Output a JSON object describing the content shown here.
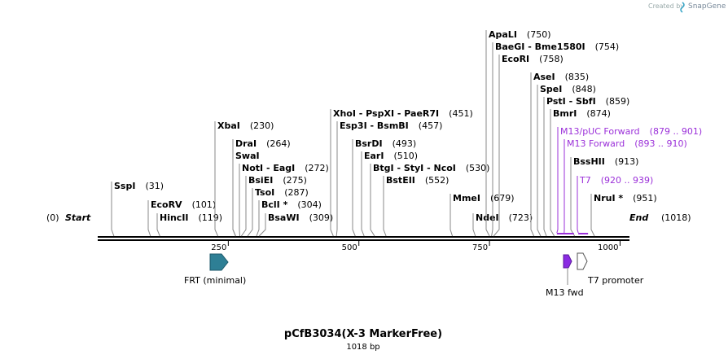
{
  "watermark": {
    "prefix": "Created by",
    "brand": "SnapGene"
  },
  "map": {
    "start": {
      "label": "Start",
      "pos": "(0)"
    },
    "end": {
      "label": "End",
      "pos": "(1018)"
    },
    "sites": [
      {
        "name": "SspI",
        "pos": "(31)"
      },
      {
        "name": "EcoRV",
        "pos": "(101)"
      },
      {
        "name": "HincII",
        "pos": "(119)"
      },
      {
        "name": "XbaI",
        "pos": "(230)"
      },
      {
        "name": "DraI",
        "pos": "(264)"
      },
      {
        "name": "SwaI",
        "pos": null
      },
      {
        "name": "NotI - EagI",
        "pos": "(272)"
      },
      {
        "name": "BsiEI",
        "pos": "(275)"
      },
      {
        "name": "TsoI",
        "pos": "(287)"
      },
      {
        "name": "BclI *",
        "pos": "(304)"
      },
      {
        "name": "BsaWI",
        "pos": "(309)"
      },
      {
        "name": "XhoI - PspXI - PaeR7I",
        "pos": "(451)"
      },
      {
        "name": "Esp3I - BsmBI",
        "pos": "(457)"
      },
      {
        "name": "BsrDI",
        "pos": "(493)"
      },
      {
        "name": "EarI",
        "pos": "(510)"
      },
      {
        "name": "BtgI - StyI - NcoI",
        "pos": "(530)"
      },
      {
        "name": "BstEII",
        "pos": "(552)"
      },
      {
        "name": "MmeI",
        "pos": "(679)"
      },
      {
        "name": "NdeI",
        "pos": "(723)"
      },
      {
        "name": "ApaLI",
        "pos": "(750)"
      },
      {
        "name": "BaeGI - Bme1580I",
        "pos": "(754)"
      },
      {
        "name": "EcoRI",
        "pos": "(758)"
      },
      {
        "name": "AseI",
        "pos": "(835)"
      },
      {
        "name": "SpeI",
        "pos": "(848)"
      },
      {
        "name": "PstI - SbfI",
        "pos": "(859)"
      },
      {
        "name": "BmrI",
        "pos": "(874)"
      },
      {
        "name": "BssHII",
        "pos": "(913)"
      },
      {
        "name": "NruI *",
        "pos": "(951)"
      }
    ],
    "primers": [
      {
        "name": "M13/pUC Forward",
        "range": "(879 .. 901)"
      },
      {
        "name": "M13 Forward",
        "range": "(893 .. 910)"
      },
      {
        "name": "T7",
        "range": "(920 .. 939)"
      }
    ],
    "ruler": [
      250,
      500,
      750,
      1000
    ],
    "features": [
      {
        "label": "FRT (minimal)"
      },
      {
        "label": "M13 fwd"
      },
      {
        "label": "T7 promoter"
      }
    ]
  },
  "title": "pCfB3034(X-3 MarkerFree)",
  "subtitle": "1018 bp"
}
